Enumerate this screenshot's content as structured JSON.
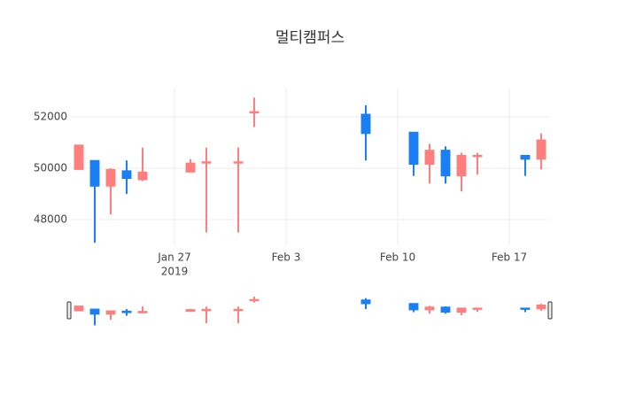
{
  "chart_data": {
    "type": "candlestick",
    "title": "멀티캠퍼스",
    "x": [
      "2019-01-21",
      "2019-01-22",
      "2019-01-23",
      "2019-01-24",
      "2019-01-25",
      "2019-01-28",
      "2019-01-29",
      "2019-01-31",
      "2019-02-01",
      "2019-02-08",
      "2019-02-11",
      "2019-02-12",
      "2019-02-13",
      "2019-02-14",
      "2019-02-15",
      "2019-02-18",
      "2019-02-19"
    ],
    "open": [
      49950,
      50300,
      49300,
      49900,
      49550,
      49850,
      50200,
      50200,
      52150,
      52100,
      51400,
      50150,
      50700,
      49700,
      50450,
      50500,
      50350
    ],
    "high": [
      50900,
      50300,
      50000,
      50300,
      50800,
      50350,
      50800,
      50800,
      52750,
      52450,
      51400,
      50950,
      50850,
      50600,
      50600,
      50500,
      51350
    ],
    "low": [
      49950,
      47100,
      48200,
      49000,
      49500,
      49850,
      47500,
      47500,
      51600,
      50300,
      49700,
      49400,
      49400,
      49100,
      49750,
      49700,
      49950
    ],
    "close": [
      50900,
      49300,
      49950,
      49600,
      49850,
      50200,
      50250,
      50250,
      52200,
      51350,
      50150,
      50700,
      49700,
      50500,
      50500,
      50350,
      51100
    ],
    "increasing_color": "#ff7f7f",
    "decreasing_color": "#1a7ff5",
    "xlim": [
      "2019-01-20T12:00",
      "2019-02-19T12:00"
    ],
    "xticks": [
      {
        "value": "2019-01-27",
        "label": "Jan 27"
      },
      {
        "value": "2019-02-03",
        "label": "Feb 3"
      },
      {
        "value": "2019-02-10",
        "label": "Feb 10"
      },
      {
        "value": "2019-02-17",
        "label": "Feb 17"
      }
    ],
    "x_year_label": "2019",
    "ylim": [
      47000,
      53100
    ],
    "yticks": [
      48000,
      50000,
      52000
    ],
    "grid": true,
    "rangeslider": true
  }
}
